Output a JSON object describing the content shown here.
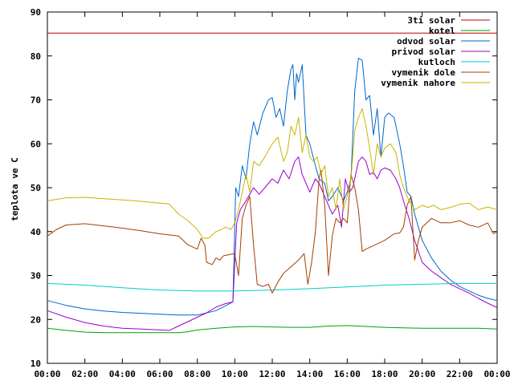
{
  "chart_data": {
    "type": "line",
    "title": "",
    "xlabel": "",
    "ylabel": "teplota ve C",
    "xlim": [
      0,
      24
    ],
    "ylim": [
      10,
      90
    ],
    "grid": false,
    "legend_position": "top-right",
    "x_ticks": [
      "00:00",
      "02:00",
      "04:00",
      "06:00",
      "08:00",
      "10:00",
      "12:00",
      "14:00",
      "16:00",
      "18:00",
      "20:00",
      "22:00",
      "00:00"
    ],
    "y_ticks": [
      "10",
      "20",
      "30",
      "40",
      "50",
      "60",
      "70",
      "80",
      "90"
    ],
    "series": [
      {
        "name": "3ti solar",
        "color": "#c00000",
        "points": [
          [
            0,
            85.2
          ],
          [
            24,
            85.2
          ]
        ]
      },
      {
        "name": "kotel",
        "color": "#00a000",
        "points": [
          [
            0,
            18
          ],
          [
            1,
            17.5
          ],
          [
            2,
            17.1
          ],
          [
            3,
            17
          ],
          [
            4,
            17
          ],
          [
            5,
            17
          ],
          [
            6,
            17
          ],
          [
            7,
            17
          ],
          [
            7.5,
            17.2
          ],
          [
            8,
            17.6
          ],
          [
            9,
            18
          ],
          [
            10,
            18.3
          ],
          [
            11,
            18.4
          ],
          [
            12,
            18.3
          ],
          [
            13,
            18.2
          ],
          [
            14,
            18.2
          ],
          [
            15,
            18.5
          ],
          [
            16,
            18.6
          ],
          [
            17,
            18.4
          ],
          [
            18,
            18.2
          ],
          [
            19,
            18.1
          ],
          [
            20,
            18
          ],
          [
            21,
            18
          ],
          [
            22,
            18
          ],
          [
            23,
            18
          ],
          [
            24,
            17.8
          ]
        ]
      },
      {
        "name": "odvod solar",
        "color": "#0066cc",
        "points": [
          [
            0,
            24.3
          ],
          [
            1,
            23.2
          ],
          [
            2,
            22.4
          ],
          [
            3,
            21.9
          ],
          [
            4,
            21.6
          ],
          [
            5,
            21.4
          ],
          [
            6,
            21.2
          ],
          [
            7,
            21
          ],
          [
            8,
            21
          ],
          [
            9,
            22
          ],
          [
            9.9,
            24
          ],
          [
            10.05,
            50
          ],
          [
            10.2,
            48
          ],
          [
            10.4,
            55
          ],
          [
            10.6,
            52
          ],
          [
            10.8,
            60
          ],
          [
            11,
            65
          ],
          [
            11.2,
            62
          ],
          [
            11.5,
            67
          ],
          [
            11.8,
            70
          ],
          [
            12,
            70.5
          ],
          [
            12.2,
            66
          ],
          [
            12.4,
            68
          ],
          [
            12.6,
            64
          ],
          [
            12.8,
            72
          ],
          [
            13,
            77
          ],
          [
            13.1,
            78
          ],
          [
            13.2,
            70
          ],
          [
            13.3,
            76
          ],
          [
            13.4,
            74
          ],
          [
            13.6,
            78
          ],
          [
            13.8,
            62
          ],
          [
            14,
            60
          ],
          [
            14.3,
            55
          ],
          [
            14.5,
            52
          ],
          [
            14.8,
            51
          ],
          [
            15,
            47
          ],
          [
            15.2,
            48
          ],
          [
            15.5,
            50
          ],
          [
            15.8,
            47
          ],
          [
            16,
            49
          ],
          [
            16.2,
            52
          ],
          [
            16.4,
            72
          ],
          [
            16.6,
            79.5
          ],
          [
            16.8,
            79
          ],
          [
            17,
            70
          ],
          [
            17.2,
            71
          ],
          [
            17.4,
            62
          ],
          [
            17.6,
            68
          ],
          [
            17.8,
            57
          ],
          [
            18,
            66
          ],
          [
            18.2,
            67
          ],
          [
            18.5,
            66
          ],
          [
            18.8,
            60
          ],
          [
            19,
            55
          ],
          [
            19.2,
            49
          ],
          [
            19.4,
            48
          ],
          [
            19.6,
            44
          ],
          [
            19.8,
            41
          ],
          [
            20,
            38
          ],
          [
            20.5,
            34
          ],
          [
            21,
            31
          ],
          [
            21.5,
            29
          ],
          [
            22,
            27.5
          ],
          [
            22.5,
            26.5
          ],
          [
            23,
            25.5
          ],
          [
            23.5,
            24.8
          ],
          [
            24,
            24.3
          ]
        ]
      },
      {
        "name": "privod solar",
        "color": "#9900cc",
        "points": [
          [
            0,
            22
          ],
          [
            1,
            20.5
          ],
          [
            2,
            19.3
          ],
          [
            3,
            18.5
          ],
          [
            4,
            18
          ],
          [
            5,
            17.8
          ],
          [
            6,
            17.6
          ],
          [
            6.5,
            17.5
          ],
          [
            7,
            18.5
          ],
          [
            7.5,
            19.5
          ],
          [
            8,
            20.5
          ],
          [
            8.5,
            21.5
          ],
          [
            9,
            22.8
          ],
          [
            9.5,
            23.6
          ],
          [
            9.9,
            24
          ],
          [
            10.1,
            42
          ],
          [
            10.3,
            45
          ],
          [
            10.6,
            47
          ],
          [
            10.8,
            48.5
          ],
          [
            11,
            50
          ],
          [
            11.3,
            48.5
          ],
          [
            11.6,
            50
          ],
          [
            12,
            52
          ],
          [
            12.3,
            51
          ],
          [
            12.6,
            54
          ],
          [
            12.9,
            52
          ],
          [
            13.2,
            56
          ],
          [
            13.4,
            57
          ],
          [
            13.6,
            53
          ],
          [
            13.8,
            51
          ],
          [
            14,
            49
          ],
          [
            14.3,
            52
          ],
          [
            14.5,
            51
          ],
          [
            14.8,
            48
          ],
          [
            15,
            46
          ],
          [
            15.2,
            44
          ],
          [
            15.5,
            46
          ],
          [
            15.7,
            41
          ],
          [
            15.9,
            52
          ],
          [
            16.1,
            49
          ],
          [
            16.3,
            50
          ],
          [
            16.6,
            56
          ],
          [
            16.8,
            57
          ],
          [
            17,
            56
          ],
          [
            17.2,
            53
          ],
          [
            17.4,
            53.5
          ],
          [
            17.6,
            52
          ],
          [
            17.8,
            54
          ],
          [
            18,
            54.5
          ],
          [
            18.3,
            54
          ],
          [
            18.6,
            52
          ],
          [
            18.8,
            50
          ],
          [
            19,
            47
          ],
          [
            19.3,
            43
          ],
          [
            19.6,
            38
          ],
          [
            20,
            33
          ],
          [
            20.5,
            31
          ],
          [
            21,
            29.5
          ],
          [
            21.5,
            28
          ],
          [
            22,
            27
          ],
          [
            22.5,
            26
          ],
          [
            23,
            24.8
          ],
          [
            23.5,
            23.7
          ],
          [
            24,
            22.7
          ]
        ]
      },
      {
        "name": "kutloch",
        "color": "#00cccc",
        "points": [
          [
            0,
            28.2
          ],
          [
            2,
            27.8
          ],
          [
            4,
            27.2
          ],
          [
            6,
            26.7
          ],
          [
            8,
            26.5
          ],
          [
            10,
            26.5
          ],
          [
            12,
            26.7
          ],
          [
            14,
            27
          ],
          [
            16,
            27.4
          ],
          [
            18,
            27.8
          ],
          [
            20,
            28
          ],
          [
            22,
            28.2
          ],
          [
            24,
            28.2
          ]
        ]
      },
      {
        "name": "vymenik dole",
        "color": "#a33f00",
        "points": [
          [
            0,
            39
          ],
          [
            0.5,
            40.5
          ],
          [
            1,
            41.5
          ],
          [
            2,
            41.8
          ],
          [
            3,
            41.3
          ],
          [
            4,
            40.8
          ],
          [
            5,
            40.2
          ],
          [
            6,
            39.5
          ],
          [
            7,
            39
          ],
          [
            7.5,
            37
          ],
          [
            8,
            36
          ],
          [
            8.2,
            38.5
          ],
          [
            8.4,
            37
          ],
          [
            8.5,
            33
          ],
          [
            8.8,
            32.5
          ],
          [
            9,
            34
          ],
          [
            9.2,
            33.5
          ],
          [
            9.4,
            34.5
          ],
          [
            10,
            35
          ],
          [
            10.2,
            30
          ],
          [
            10.4,
            43
          ],
          [
            10.6,
            46
          ],
          [
            10.8,
            48
          ],
          [
            11,
            37
          ],
          [
            11.2,
            28
          ],
          [
            11.5,
            27.5
          ],
          [
            11.8,
            28
          ],
          [
            12,
            26
          ],
          [
            12.3,
            28.5
          ],
          [
            12.6,
            30.5
          ],
          [
            13,
            32
          ],
          [
            13.4,
            33.5
          ],
          [
            13.7,
            35
          ],
          [
            13.9,
            28
          ],
          [
            14.1,
            33
          ],
          [
            14.3,
            40
          ],
          [
            14.5,
            52
          ],
          [
            14.6,
            54
          ],
          [
            14.8,
            46
          ],
          [
            15,
            30
          ],
          [
            15.2,
            39
          ],
          [
            15.4,
            43
          ],
          [
            15.6,
            42
          ],
          [
            15.8,
            43
          ],
          [
            16,
            42
          ],
          [
            16.2,
            53
          ],
          [
            16.4,
            50
          ],
          [
            16.6,
            45
          ],
          [
            16.8,
            35.5
          ],
          [
            17,
            36
          ],
          [
            17.5,
            37
          ],
          [
            18,
            38
          ],
          [
            18.5,
            39.5
          ],
          [
            18.8,
            39.7
          ],
          [
            19,
            41
          ],
          [
            19.2,
            46
          ],
          [
            19.4,
            48
          ],
          [
            19.6,
            33.5
          ],
          [
            19.8,
            38
          ],
          [
            20,
            41
          ],
          [
            20.5,
            43
          ],
          [
            21,
            42
          ],
          [
            21.5,
            42
          ],
          [
            22,
            42.5
          ],
          [
            22.5,
            41.5
          ],
          [
            23,
            41
          ],
          [
            23.5,
            42
          ],
          [
            23.8,
            39.5
          ],
          [
            24,
            40
          ]
        ]
      },
      {
        "name": "vymenik nahore",
        "color": "#c8b400",
        "points": [
          [
            0,
            47
          ],
          [
            1,
            47.7
          ],
          [
            2,
            47.8
          ],
          [
            3,
            47.5
          ],
          [
            4,
            47.2
          ],
          [
            5,
            46.9
          ],
          [
            6,
            46.5
          ],
          [
            6.5,
            46.3
          ],
          [
            7,
            44
          ],
          [
            7.5,
            42.5
          ],
          [
            8,
            40.5
          ],
          [
            8.3,
            38.5
          ],
          [
            8.6,
            38.5
          ],
          [
            9,
            40
          ],
          [
            9.3,
            40.5
          ],
          [
            9.5,
            41
          ],
          [
            9.8,
            40.5
          ],
          [
            10,
            42
          ],
          [
            10.2,
            45
          ],
          [
            10.4,
            49
          ],
          [
            10.6,
            53
          ],
          [
            10.8,
            49
          ],
          [
            11,
            56
          ],
          [
            11.3,
            55
          ],
          [
            11.6,
            57
          ],
          [
            12,
            60
          ],
          [
            12.3,
            61.5
          ],
          [
            12.6,
            56
          ],
          [
            12.8,
            58
          ],
          [
            13,
            64
          ],
          [
            13.2,
            62
          ],
          [
            13.4,
            66
          ],
          [
            13.6,
            58
          ],
          [
            13.8,
            62
          ],
          [
            14,
            57
          ],
          [
            14.2,
            56
          ],
          [
            14.4,
            57
          ],
          [
            14.6,
            53
          ],
          [
            14.8,
            55
          ],
          [
            15,
            48
          ],
          [
            15.2,
            50
          ],
          [
            15.4,
            45
          ],
          [
            15.6,
            52
          ],
          [
            15.8,
            45
          ],
          [
            16,
            48
          ],
          [
            16.2,
            52
          ],
          [
            16.4,
            63
          ],
          [
            16.6,
            66
          ],
          [
            16.8,
            68
          ],
          [
            17,
            64
          ],
          [
            17.2,
            59
          ],
          [
            17.4,
            53
          ],
          [
            17.6,
            60
          ],
          [
            17.8,
            57
          ],
          [
            18,
            59
          ],
          [
            18.3,
            60
          ],
          [
            18.6,
            58
          ],
          [
            18.8,
            53
          ],
          [
            19,
            50
          ],
          [
            19.3,
            47
          ],
          [
            19.6,
            45
          ],
          [
            20,
            46
          ],
          [
            20.3,
            45.5
          ],
          [
            20.6,
            46
          ],
          [
            21,
            45
          ],
          [
            21.5,
            45.5
          ],
          [
            22,
            46.2
          ],
          [
            22.5,
            46.5
          ],
          [
            23,
            45
          ],
          [
            23.5,
            45.6
          ],
          [
            24,
            45
          ]
        ]
      }
    ]
  }
}
